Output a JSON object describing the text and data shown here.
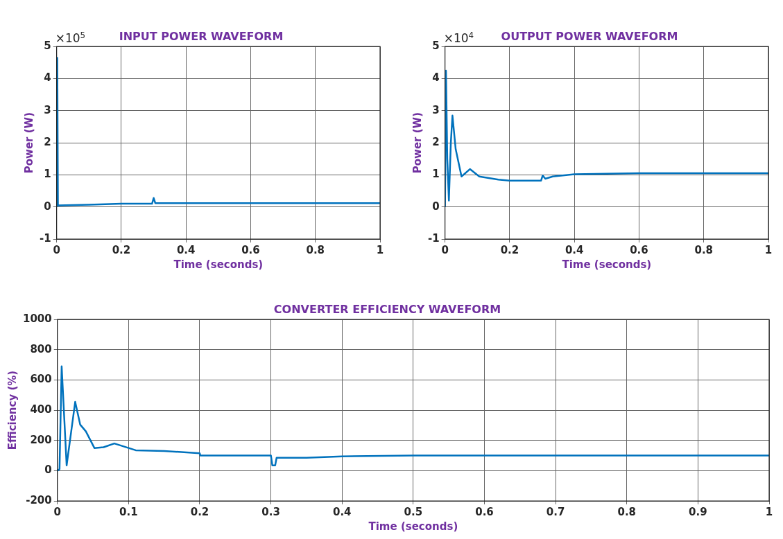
{
  "chart_data": [
    {
      "type": "line",
      "title": "INPUT POWER WAVEFORM",
      "xlabel": "Time (seconds)",
      "ylabel": "Power (W)",
      "annotations": [
        "×10$^{5}$"
      ],
      "series": [
        {
          "color": "#0072bd",
          "x": [
            0,
            0.002,
            0.004,
            0.1,
            0.2,
            0.295,
            0.3,
            0.305,
            0.4,
            0.6,
            1
          ],
          "values": [
            0,
            4.65,
            0.05,
            0.07,
            0.1,
            0.1,
            0.28,
            0.12,
            0.12,
            0.12,
            0.12
          ]
        }
      ],
      "xlim": [
        0,
        1
      ],
      "xticks": [
        0,
        0.2,
        0.4,
        0.6,
        0.8,
        1
      ],
      "ylim": [
        -1,
        5
      ],
      "yticks": [
        -1,
        0,
        1,
        2,
        3,
        4,
        5
      ],
      "grid": true,
      "legend": false,
      "marker": "none",
      "line_style": "solid"
    },
    {
      "type": "line",
      "title": "OUTPUT POWER WAVEFORM",
      "xlabel": "Time (seconds)",
      "ylabel": "Power (W)",
      "annotations": [
        "×10$^{4}$"
      ],
      "series": [
        {
          "color": "#0072bd",
          "x": [
            0,
            0.003,
            0.007,
            0.012,
            0.018,
            0.023,
            0.033,
            0.051,
            0.077,
            0.106,
            0.165,
            0.2,
            0.297,
            0.302,
            0.31,
            0.333,
            0.4,
            0.6,
            1
          ],
          "values": [
            0,
            4.25,
            1.5,
            0.2,
            2.0,
            2.85,
            1.8,
            0.95,
            1.18,
            0.95,
            0.85,
            0.82,
            0.82,
            0.98,
            0.88,
            0.95,
            1.02,
            1.05,
            1.05
          ]
        }
      ],
      "xlim": [
        0,
        1
      ],
      "xticks": [
        0,
        0.2,
        0.4,
        0.6,
        0.8,
        1
      ],
      "ylim": [
        -1,
        5
      ],
      "yticks": [
        -1,
        0,
        1,
        2,
        3,
        4,
        5
      ],
      "grid": true,
      "legend": false,
      "marker": "none",
      "line_style": "solid"
    },
    {
      "type": "line",
      "title": "CONVERTER EFFICIENCY WAVEFORM",
      "xlabel": "Time (seconds)",
      "ylabel": "Efficiency (%)",
      "series": [
        {
          "color": "#0072bd",
          "x": [
            0,
            0.003,
            0.006,
            0.013,
            0.025,
            0.032,
            0.04,
            0.052,
            0.065,
            0.08,
            0.1,
            0.11,
            0.15,
            0.2,
            0.201,
            0.3,
            0.302,
            0.306,
            0.308,
            0.35,
            0.4,
            0.5,
            1
          ],
          "values": [
            0,
            10,
            690,
            35,
            455,
            305,
            260,
            150,
            155,
            180,
            150,
            135,
            130,
            115,
            100,
            100,
            35,
            35,
            85,
            85,
            95,
            100,
            100
          ]
        }
      ],
      "xlim": [
        0,
        1
      ],
      "xticks": [
        0,
        0.1,
        0.2,
        0.3,
        0.4,
        0.5,
        0.6,
        0.7,
        0.8,
        0.9,
        1
      ],
      "ylim": [
        -200,
        1000
      ],
      "yticks": [
        -200,
        0,
        200,
        400,
        600,
        800,
        1000
      ],
      "grid": true,
      "legend": false,
      "marker": "none",
      "line_style": "solid"
    }
  ]
}
